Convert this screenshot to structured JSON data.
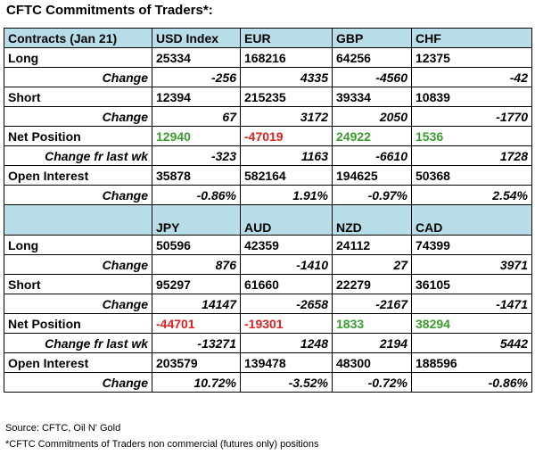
{
  "title": "CFTC Commitments of Traders*:",
  "table1": {
    "header": [
      "Contracts (Jan 21)",
      "USD Index",
      "EUR",
      "GBP",
      "CHF"
    ],
    "long": [
      "Long",
      "25334",
      "168216",
      "64256",
      "12375"
    ],
    "long_change": [
      "Change",
      "-256",
      "4335",
      "-4560",
      "-42"
    ],
    "short": [
      "Short",
      "12394",
      "215235",
      "39334",
      "10839"
    ],
    "short_change": [
      "Change",
      "67",
      "3172",
      "2050",
      "-1770"
    ],
    "net": [
      "Net Position",
      "12940",
      "-47019",
      "24922",
      "1536"
    ],
    "net_change": [
      "Change fr last wk",
      "-323",
      "1163",
      "-6610",
      "1728"
    ],
    "oi": [
      "Open Interest",
      "35878",
      "582164",
      "194625",
      "50368"
    ],
    "oi_change": [
      "Change",
      "-0.86%",
      "1.91%",
      "-0.97%",
      "2.54%"
    ]
  },
  "table2": {
    "header": [
      "",
      "JPY",
      "AUD",
      "NZD",
      "CAD"
    ],
    "long": [
      "Long",
      "50596",
      "42359",
      "24112",
      "74399"
    ],
    "long_change": [
      "Change",
      "876",
      "-1410",
      "27",
      "3971"
    ],
    "short": [
      "Short",
      "95297",
      "61660",
      "22279",
      "36105"
    ],
    "short_change": [
      "Change",
      "14147",
      "-2658",
      "-2167",
      "-1471"
    ],
    "net": [
      "Net Position",
      "-44701",
      "-19301",
      "1833",
      "38294"
    ],
    "net_change": [
      "Change fr last wk",
      "-13271",
      "1248",
      "2194",
      "5442"
    ],
    "oi": [
      "Open Interest",
      "203579",
      "139478",
      "48300",
      "188596"
    ],
    "oi_change": [
      "Change",
      "10.72%",
      "-3.52%",
      "-0.72%",
      "-0.86%"
    ]
  },
  "colors": {
    "positive": "#3a9b2e",
    "negative": "#e0201c",
    "header_bg": "#b7dde8"
  },
  "source": "Source: CFTC, Oil N' Gold",
  "note": "*CFTC Commitments of Traders non commercial (futures only) positions"
}
